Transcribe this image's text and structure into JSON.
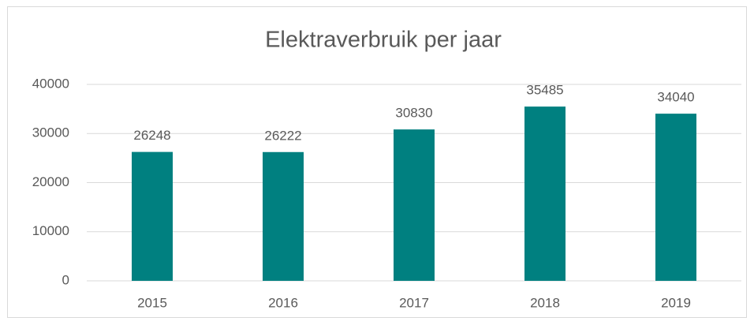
{
  "chart_data": {
    "type": "bar",
    "title": "Elektraverbruik per jaar",
    "categories": [
      "2015",
      "2016",
      "2017",
      "2018",
      "2019"
    ],
    "values": [
      26248,
      26222,
      30830,
      35485,
      34040
    ],
    "color": "#008080",
    "ylim": [
      0,
      40000
    ],
    "yticks": [
      0,
      10000,
      20000,
      30000,
      40000
    ],
    "grid": true
  }
}
